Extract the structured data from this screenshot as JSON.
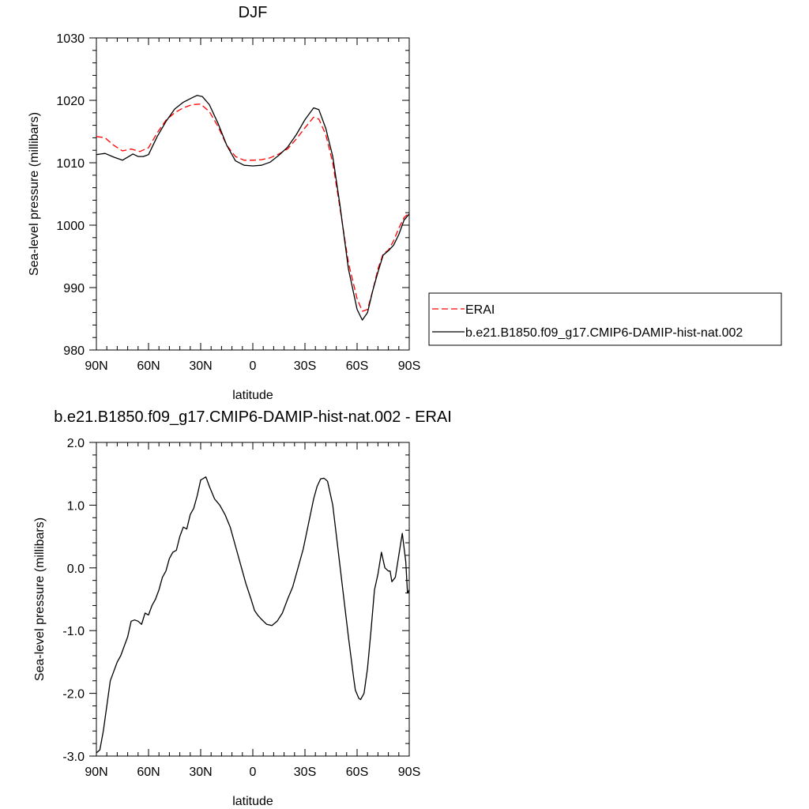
{
  "chart_data": [
    {
      "type": "line",
      "title": "DJF",
      "xlabel": "latitude",
      "ylabel": "Sea-level pressure (millibars)",
      "xlim": [
        -90,
        90
      ],
      "ylim": [
        980,
        1030
      ],
      "xticks": [
        -90,
        -60,
        -30,
        0,
        30,
        60,
        90
      ],
      "xtick_labels": [
        "90N",
        "60N",
        "30N",
        "0",
        "30S",
        "60S",
        "90S"
      ],
      "yticks": [
        980,
        990,
        1000,
        1010,
        1020,
        1030
      ],
      "ytick_labels": [
        "980",
        "990",
        "1000",
        "1010",
        "1020",
        "1030"
      ],
      "legend_position": "right",
      "grid": false,
      "series": [
        {
          "name": "ERAI",
          "color": "#ff0000",
          "style": "dashed",
          "x": [
            -90,
            -85,
            -80,
            -75,
            -70,
            -65,
            -60,
            -55,
            -50,
            -45,
            -40,
            -35,
            -30,
            -25,
            -20,
            -15,
            -10,
            -5,
            0,
            5,
            10,
            15,
            20,
            25,
            30,
            35,
            38,
            42,
            46,
            50,
            55,
            60,
            63,
            66,
            69,
            72,
            75,
            78,
            81,
            84,
            87,
            90
          ],
          "y": [
            1014.2,
            1014.0,
            1012.8,
            1011.9,
            1012.2,
            1011.8,
            1012.4,
            1014.8,
            1016.8,
            1018.0,
            1018.8,
            1019.3,
            1019.4,
            1018.2,
            1015.8,
            1012.8,
            1011.0,
            1010.4,
            1010.4,
            1010.5,
            1010.8,
            1011.4,
            1012.2,
            1013.8,
            1015.6,
            1017.3,
            1017.0,
            1014.5,
            1010.0,
            1003.0,
            994.0,
            988.2,
            986.2,
            986.5,
            989.5,
            993.0,
            995.4,
            996.0,
            997.5,
            999.5,
            1001.2,
            1002.0
          ]
        },
        {
          "name": "b.e21.B1850.f09_g17.CMIP6-DAMIP-hist-nat.002",
          "color": "#000000",
          "style": "solid",
          "x": [
            -90,
            -85,
            -80,
            -75,
            -72,
            -69,
            -66,
            -63,
            -60,
            -55,
            -50,
            -45,
            -40,
            -35,
            -32,
            -29,
            -25,
            -20,
            -15,
            -10,
            -5,
            0,
            5,
            10,
            15,
            20,
            25,
            30,
            35,
            38,
            42,
            46,
            50,
            55,
            60,
            63,
            66,
            69,
            72,
            75,
            78,
            81,
            84,
            87,
            90
          ],
          "y": [
            1011.3,
            1011.5,
            1010.9,
            1010.4,
            1010.9,
            1011.4,
            1011.0,
            1011.0,
            1011.3,
            1014.2,
            1016.6,
            1018.6,
            1019.7,
            1020.4,
            1020.8,
            1020.6,
            1019.3,
            1016.3,
            1012.8,
            1010.3,
            1009.6,
            1009.5,
            1009.6,
            1010.1,
            1011.2,
            1012.5,
            1014.5,
            1016.9,
            1018.8,
            1018.5,
            1015.5,
            1011.0,
            1003.5,
            993.0,
            986.5,
            984.8,
            986.0,
            989.5,
            992.5,
            995.2,
            995.9,
            996.8,
            998.5,
            1000.8,
            1001.8
          ]
        }
      ]
    },
    {
      "type": "line",
      "title": "b.e21.B1850.f09_g17.CMIP6-DAMIP-hist-nat.002 - ERAI",
      "xlabel": "latitude",
      "ylabel": "Sea-level pressure (millibars)",
      "xlim": [
        -90,
        90
      ],
      "ylim": [
        -3.0,
        2.0
      ],
      "xticks": [
        -90,
        -60,
        -30,
        0,
        30,
        60,
        90
      ],
      "xtick_labels": [
        "90N",
        "60N",
        "30N",
        "0",
        "30S",
        "60S",
        "90S"
      ],
      "yticks": [
        -3.0,
        -2.0,
        -1.0,
        0.0,
        1.0,
        2.0
      ],
      "ytick_labels": [
        "-3.0",
        "-2.0",
        "-1.0",
        "0.0",
        "1.0",
        "2.0"
      ],
      "grid": false,
      "series": [
        {
          "color": "#000000",
          "style": "solid",
          "x": [
            -90,
            -88,
            -86,
            -84,
            -82,
            -80,
            -78,
            -76,
            -74,
            -72,
            -70,
            -68,
            -66,
            -64,
            -62,
            -60,
            -58,
            -56,
            -54,
            -52,
            -50,
            -48,
            -46,
            -44,
            -42,
            -40,
            -38,
            -36,
            -34,
            -32,
            -30,
            -27,
            -25,
            -22,
            -19,
            -16,
            -13,
            -10,
            -7,
            -4,
            -1,
            1,
            3,
            5,
            8,
            11,
            14,
            17,
            20,
            23,
            26,
            29,
            32,
            35,
            37,
            39,
            41,
            43,
            46,
            49,
            52,
            55,
            58,
            59,
            61,
            62,
            64,
            66,
            68,
            70,
            72,
            74,
            76,
            78,
            79,
            80,
            82,
            84,
            86,
            88,
            89,
            90
          ],
          "y": [
            -2.95,
            -2.9,
            -2.6,
            -2.2,
            -1.8,
            -1.65,
            -1.5,
            -1.4,
            -1.25,
            -1.1,
            -0.85,
            -0.83,
            -0.85,
            -0.9,
            -0.72,
            -0.75,
            -0.6,
            -0.5,
            -0.35,
            -0.15,
            -0.05,
            0.15,
            0.25,
            0.28,
            0.5,
            0.65,
            0.62,
            0.85,
            0.95,
            1.15,
            1.4,
            1.45,
            1.3,
            1.1,
            1.0,
            0.85,
            0.65,
            0.35,
            0.05,
            -0.25,
            -0.5,
            -0.68,
            -0.76,
            -0.82,
            -0.9,
            -0.92,
            -0.85,
            -0.72,
            -0.5,
            -0.3,
            0.0,
            0.3,
            0.7,
            1.1,
            1.3,
            1.42,
            1.43,
            1.38,
            1.0,
            0.3,
            -0.4,
            -1.1,
            -1.75,
            -1.95,
            -2.08,
            -2.1,
            -2.0,
            -1.6,
            -1.0,
            -0.35,
            -0.1,
            0.25,
            0.0,
            -0.05,
            -0.05,
            -0.22,
            -0.15,
            0.2,
            0.55,
            0.1,
            -0.4,
            -0.35
          ]
        }
      ]
    }
  ]
}
